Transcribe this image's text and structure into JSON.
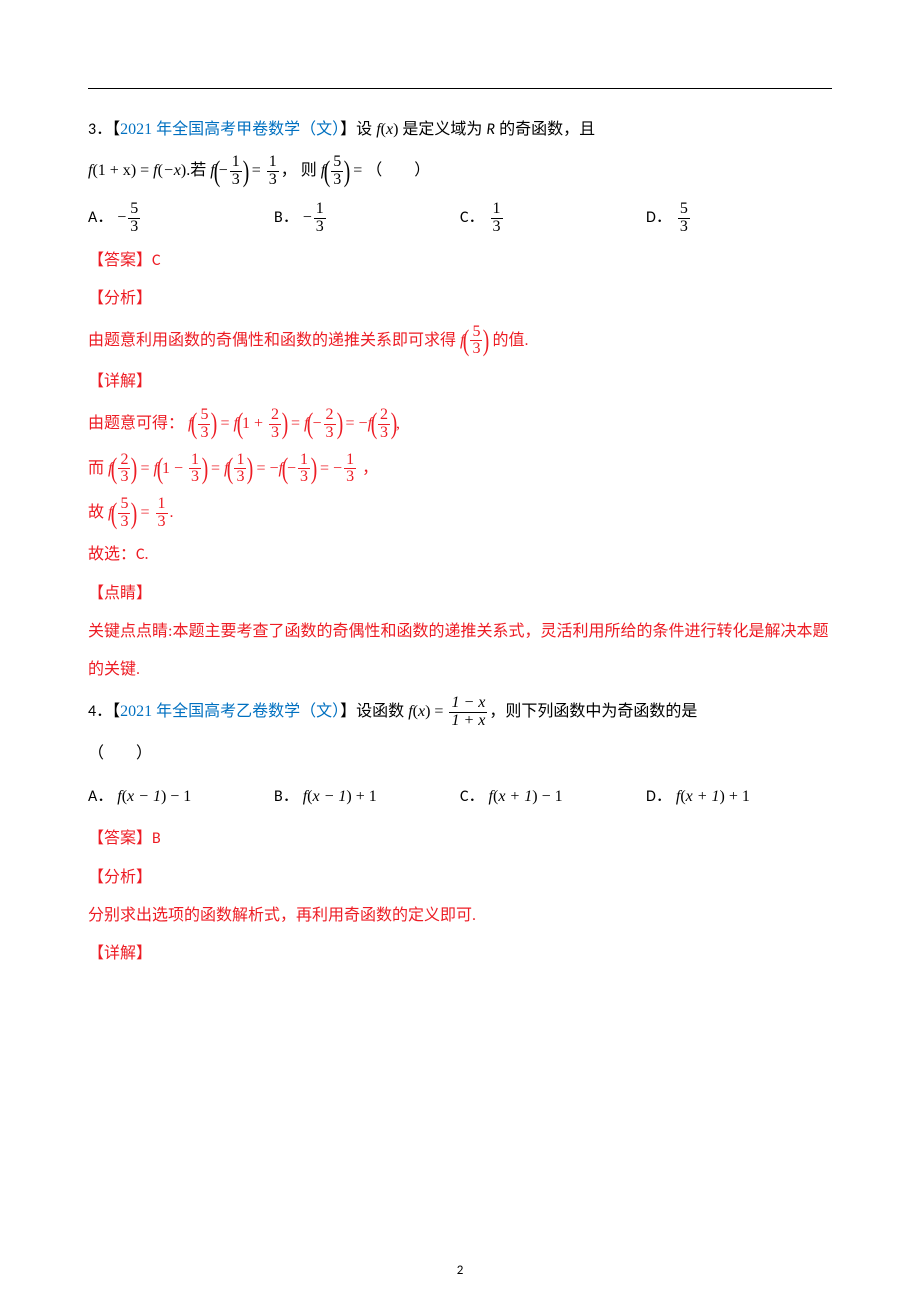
{
  "page": {
    "number": "2",
    "rule_color": "#000000"
  },
  "colors": {
    "text": "#000000",
    "red": "#ed1c24",
    "blue": "#0070c0",
    "background": "#ffffff"
  },
  "typography": {
    "body_fontsize_pt": 12,
    "math_font": "Times New Roman",
    "cjk_font": "SimSun",
    "line_height": 2.4
  },
  "q3": {
    "number": "3．",
    "source_open": "【",
    "source": "2021 年全国高考甲卷数学（文）",
    "source_close": "】",
    "stem_a": "设",
    "fx": "f",
    "fx_arg_open": "(",
    "fx_arg": "x",
    "fx_arg_close": ")",
    "stem_b": "是定义域为",
    "R": "R",
    "stem_c": "的奇函数，且",
    "rel1_lhs_f": "f",
    "rel1_lhs_open": "(",
    "rel1_lhs_inner": "1 + x",
    "rel1_lhs_close": ")",
    "rel1_eq": " = ",
    "rel1_rhs_f": "f",
    "rel1_rhs_open": "(",
    "rel1_rhs_inner": "−x",
    "rel1_rhs_close": ")",
    "period": ".",
    "if_word": "若",
    "cond_f": "f",
    "neg": "−",
    "one": "1",
    "three": "3",
    "eq": "=",
    "comma": "，",
    "then_word": " 则",
    "ask_f": "f",
    "five": "5",
    "eq2": "=",
    "blank": "（　　）",
    "choices": {
      "A": {
        "label": "A．",
        "sign": "−",
        "num": "5",
        "den": "3"
      },
      "B": {
        "label": "B．",
        "sign": "−",
        "num": "1",
        "den": "3"
      },
      "C": {
        "label": "C．",
        "sign": "",
        "num": "1",
        "den": "3"
      },
      "D": {
        "label": "D．",
        "sign": "",
        "num": "5",
        "den": "3"
      }
    },
    "answer_label": "【答案】",
    "answer": "C",
    "analysis_label": "【分析】",
    "analysis_text_a": "由题意利用函数的奇偶性和函数的递推关系即可求得",
    "analysis_f": "f",
    "analysis_num": "5",
    "analysis_den": "3",
    "analysis_text_b": "的值.",
    "detail_label": "【详解】",
    "detail1_pre": "由题意可得：",
    "d1": {
      "f": "f",
      "a_num": "5",
      "a_den": "3",
      "eq1": "=",
      "b_l": "1 +",
      "b_num": "2",
      "b_den": "3",
      "eq2": "=",
      "c_sign": "−",
      "c_num": "2",
      "c_den": "3",
      "eq3": "=",
      "d_sign": "−",
      "d_num": "2",
      "d_den": "3",
      "comma": ","
    },
    "detail2_pre": "而",
    "d2": {
      "f": "f",
      "a_num": "2",
      "a_den": "3",
      "eq1": "=",
      "b_l": "1 −",
      "b_num": "1",
      "b_den": "3",
      "eq2": "=",
      "c_num": "1",
      "c_den": "3",
      "eq3": "=",
      "d_sign": "−",
      "d_num": "1",
      "d_den": "3",
      "eq4": "=",
      "e_sign": "−",
      "e_num": "1",
      "e_den": "3",
      "comma": "，"
    },
    "detail3_pre": "故",
    "d3": {
      "f": "f",
      "a_num": "5",
      "a_den": "3",
      "eq": "=",
      "r_num": "1",
      "r_den": "3",
      "period": "."
    },
    "conclude": "故选：",
    "conclude_ans": "C.",
    "dianjing_label": "【点睛】",
    "dianjing_text": "关键点点睛:本题主要考查了函数的奇偶性和函数的递推关系式，灵活利用所给的条件进行转化是解决本题的关键."
  },
  "q4": {
    "number": "4．",
    "source_open": "【",
    "source": "2021 年全国高考乙卷数学（文）",
    "source_close": "】",
    "stem_a": "设函数",
    "f": "f",
    "lp": "(",
    "x": "x",
    "rp": ")",
    "eq": "=",
    "num": "1 − x",
    "den": "1 + x",
    "stem_b": "，则下列函数中为奇函数的是",
    "blank": "（　　）",
    "choices": {
      "A": {
        "label": "A．",
        "inner": "x − 1",
        "tail": " − 1"
      },
      "B": {
        "label": "B．",
        "inner": "x − 1",
        "tail": " + 1"
      },
      "C": {
        "label": "C．",
        "inner": "x + 1",
        "tail": " − 1"
      },
      "D": {
        "label": "D．",
        "inner": "x + 1",
        "tail": " + 1"
      }
    },
    "answer_label": "【答案】",
    "answer": "B",
    "analysis_label": "【分析】",
    "analysis_text": "分别求出选项的函数解析式，再利用奇函数的定义即可.",
    "detail_label": "【详解】"
  }
}
